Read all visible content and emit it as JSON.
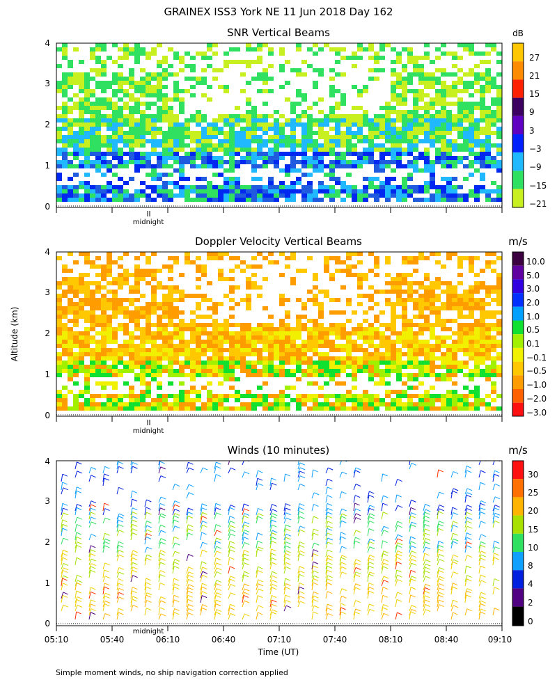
{
  "figure_title": "GRAINEX ISS3 York NE  11 Jun 2018 Day 162",
  "y_axis_label": "Altitude (km)",
  "x_axis_label": "Time (UT)",
  "footnote": "Simple moment winds, no ship navigation correction applied",
  "midnight_label": "midnight",
  "chart_data": [
    {
      "type": "heatmap",
      "title": "SNR Vertical Beams",
      "units": "dB",
      "ylim": [
        0,
        4
      ],
      "yticks": [
        "0",
        "1",
        "2",
        "3",
        "4"
      ],
      "colorbar_labels": [
        "27",
        "21",
        "15",
        "9",
        "3",
        "−3",
        "−9",
        "−15",
        "−21"
      ],
      "colorbar_colors": [
        "#ffc800",
        "#ff8c00",
        "#ff2000",
        "#3c0060",
        "#6000c0",
        "#0020ff",
        "#20b8ff",
        "#30e060",
        "#c8f020"
      ],
      "band_colors": [
        "#c8f020",
        "#30e060",
        "#20b8ff",
        "#0028f0",
        "#1f5adf"
      ],
      "x_start": "05:10",
      "x_end": "09:10"
    },
    {
      "type": "heatmap",
      "title": "Doppler Velocity Vertical Beams",
      "units": "m/s",
      "ylim": [
        0,
        4
      ],
      "yticks": [
        "0",
        "1",
        "2",
        "3",
        "4"
      ],
      "colorbar_labels": [
        "10.0",
        "5.0",
        "3.0",
        "2.0",
        "1.0",
        "0.5",
        "0.1",
        "−0.1",
        "−0.5",
        "−1.0",
        "−2.0",
        "−3.0"
      ],
      "colorbar_colors": [
        "#3c0040",
        "#6000a0",
        "#3000e0",
        "#0030ff",
        "#00a0ff",
        "#10e030",
        "#a0f000",
        "#f0f000",
        "#ffc800",
        "#ff9c00",
        "#ff6000",
        "#ff1010"
      ],
      "band_colors": [
        "#ffc800",
        "#ff9c00",
        "#f0f000",
        "#a0f000",
        "#10e030"
      ],
      "x_start": "05:10",
      "x_end": "09:10"
    },
    {
      "type": "scatter",
      "title": "Winds (10 minutes)",
      "units": "m/s",
      "ylim": [
        0,
        4
      ],
      "yticks": [
        "0",
        "1",
        "2",
        "3",
        "4"
      ],
      "xticks": [
        "05:10",
        "05:40",
        "06:10",
        "06:40",
        "07:10",
        "07:40",
        "08:10",
        "08:40",
        "09:10"
      ],
      "colorbar_labels": [
        "30",
        "25",
        "20",
        "15",
        "10",
        "8",
        "4",
        "2",
        "0"
      ],
      "colorbar_colors": [
        "#ff1010",
        "#ff7000",
        "#ffb400",
        "#a8e000",
        "#30e060",
        "#10a0ff",
        "#0020e0",
        "#500080",
        "#000000"
      ],
      "wind_colors": [
        "#ffb400",
        "#f0d000",
        "#a8e000",
        "#30e060",
        "#10a0ff",
        "#0020e0",
        "#ff3000",
        "#500080"
      ]
    }
  ]
}
